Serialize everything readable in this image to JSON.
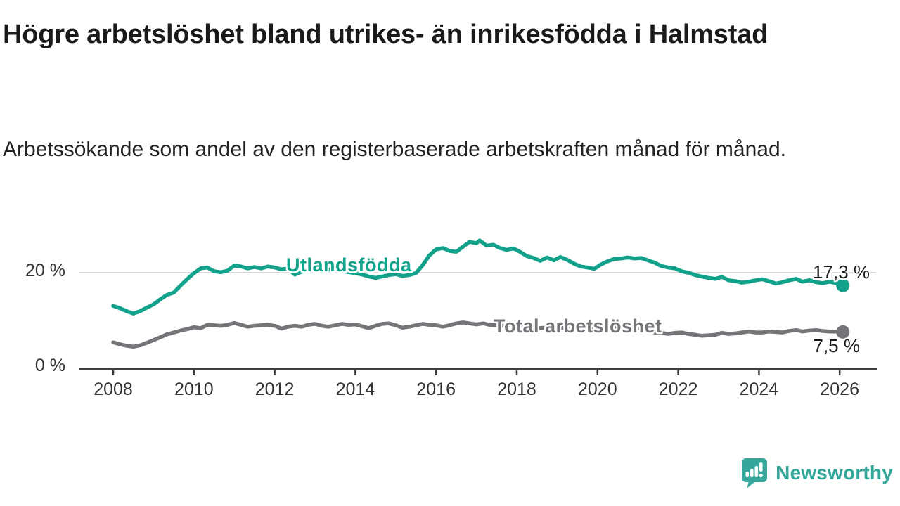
{
  "header": {
    "title": "Högre arbetslöshet bland utrikes- än inrikesfödda i Halmstad",
    "subtitle": "Arbetssökande som andel av den registerbaserade arbetskraften månad för månad."
  },
  "chart_data": {
    "type": "line",
    "title": "Högre arbetslöshet bland utrikes- än inrikesfödda i Halmstad",
    "subtitle": "Arbetssökande som andel av den registerbaserade arbetskraften månad för månad.",
    "xlabel": "",
    "ylabel": "",
    "xlim": [
      2008,
      2026.3
    ],
    "ylim": [
      0,
      29
    ],
    "grid": "single horizontal gridline at 20 %",
    "grid_color": "#d8d8d8",
    "axis_color": "#3d3d3d",
    "tick_label_color": "#333333",
    "legend_position": "inline-labels-on-lines",
    "x_ticks": [
      2008,
      2010,
      2012,
      2014,
      2016,
      2018,
      2020,
      2022,
      2024,
      2026
    ],
    "y_ticks": [
      {
        "value": 20,
        "label": "20 %"
      },
      {
        "value": 0,
        "label": "0 %"
      }
    ],
    "series": [
      {
        "name": "Utlandsfödda",
        "color": "#12a28b",
        "end_label": "17,3 %",
        "end_value": 17.3,
        "points": [
          [
            2008.0,
            13.0
          ],
          [
            2008.17,
            12.5
          ],
          [
            2008.33,
            11.9
          ],
          [
            2008.5,
            11.4
          ],
          [
            2008.67,
            11.9
          ],
          [
            2008.83,
            12.6
          ],
          [
            2009.0,
            13.3
          ],
          [
            2009.17,
            14.4
          ],
          [
            2009.33,
            15.3
          ],
          [
            2009.5,
            15.8
          ],
          [
            2009.67,
            17.3
          ],
          [
            2009.83,
            18.6
          ],
          [
            2010.0,
            19.9
          ],
          [
            2010.17,
            20.9
          ],
          [
            2010.33,
            21.1
          ],
          [
            2010.5,
            20.3
          ],
          [
            2010.67,
            20.1
          ],
          [
            2010.83,
            20.4
          ],
          [
            2011.0,
            21.5
          ],
          [
            2011.17,
            21.3
          ],
          [
            2011.33,
            20.9
          ],
          [
            2011.5,
            21.2
          ],
          [
            2011.67,
            20.9
          ],
          [
            2011.83,
            21.3
          ],
          [
            2012.0,
            21.1
          ],
          [
            2012.17,
            20.7
          ],
          [
            2012.33,
            20.9
          ],
          [
            2012.5,
            19.6
          ],
          [
            2012.67,
            20.2
          ],
          [
            2012.83,
            20.6
          ],
          [
            2013.0,
            20.7
          ],
          [
            2013.17,
            20.3
          ],
          [
            2013.33,
            20.6
          ],
          [
            2013.5,
            20.8
          ],
          [
            2013.67,
            20.4
          ],
          [
            2013.83,
            20.1
          ],
          [
            2014.0,
            19.9
          ],
          [
            2014.17,
            19.6
          ],
          [
            2014.33,
            19.2
          ],
          [
            2014.5,
            18.9
          ],
          [
            2014.67,
            19.2
          ],
          [
            2014.83,
            19.5
          ],
          [
            2015.0,
            19.7
          ],
          [
            2015.17,
            19.3
          ],
          [
            2015.33,
            19.5
          ],
          [
            2015.5,
            19.9
          ],
          [
            2015.67,
            21.6
          ],
          [
            2015.83,
            23.6
          ],
          [
            2016.0,
            24.9
          ],
          [
            2016.17,
            25.2
          ],
          [
            2016.33,
            24.6
          ],
          [
            2016.5,
            24.4
          ],
          [
            2016.67,
            25.5
          ],
          [
            2016.83,
            26.5
          ],
          [
            2017.0,
            26.2
          ],
          [
            2017.08,
            26.8
          ],
          [
            2017.25,
            25.7
          ],
          [
            2017.42,
            25.9
          ],
          [
            2017.58,
            25.2
          ],
          [
            2017.75,
            24.8
          ],
          [
            2017.92,
            25.1
          ],
          [
            2018.08,
            24.4
          ],
          [
            2018.25,
            23.5
          ],
          [
            2018.42,
            23.1
          ],
          [
            2018.58,
            22.5
          ],
          [
            2018.75,
            23.2
          ],
          [
            2018.92,
            22.6
          ],
          [
            2019.08,
            23.3
          ],
          [
            2019.25,
            22.7
          ],
          [
            2019.42,
            21.9
          ],
          [
            2019.58,
            21.3
          ],
          [
            2019.75,
            21.1
          ],
          [
            2019.92,
            20.8
          ],
          [
            2020.08,
            21.7
          ],
          [
            2020.25,
            22.4
          ],
          [
            2020.42,
            22.9
          ],
          [
            2020.58,
            23.0
          ],
          [
            2020.75,
            23.2
          ],
          [
            2020.92,
            23.0
          ],
          [
            2021.08,
            23.1
          ],
          [
            2021.25,
            22.6
          ],
          [
            2021.42,
            22.1
          ],
          [
            2021.58,
            21.4
          ],
          [
            2021.75,
            21.1
          ],
          [
            2021.92,
            20.9
          ],
          [
            2022.08,
            20.3
          ],
          [
            2022.25,
            20.0
          ],
          [
            2022.42,
            19.5
          ],
          [
            2022.58,
            19.2
          ],
          [
            2022.75,
            18.9
          ],
          [
            2022.92,
            18.7
          ],
          [
            2023.08,
            19.1
          ],
          [
            2023.25,
            18.4
          ],
          [
            2023.42,
            18.2
          ],
          [
            2023.58,
            17.9
          ],
          [
            2023.75,
            18.1
          ],
          [
            2023.92,
            18.4
          ],
          [
            2024.08,
            18.6
          ],
          [
            2024.25,
            18.2
          ],
          [
            2024.42,
            17.7
          ],
          [
            2024.58,
            18.0
          ],
          [
            2024.75,
            18.4
          ],
          [
            2024.92,
            18.7
          ],
          [
            2025.08,
            18.1
          ],
          [
            2025.25,
            18.4
          ],
          [
            2025.42,
            18.0
          ],
          [
            2025.58,
            17.8
          ],
          [
            2025.75,
            18.1
          ],
          [
            2025.92,
            17.8
          ],
          [
            2026.08,
            17.3
          ]
        ]
      },
      {
        "name": "Total arbetslöshet",
        "color": "#747579",
        "end_label": "7,5 %",
        "end_value": 7.5,
        "points": [
          [
            2008.0,
            5.3
          ],
          [
            2008.17,
            4.9
          ],
          [
            2008.33,
            4.6
          ],
          [
            2008.5,
            4.4
          ],
          [
            2008.67,
            4.7
          ],
          [
            2008.83,
            5.2
          ],
          [
            2009.0,
            5.8
          ],
          [
            2009.17,
            6.4
          ],
          [
            2009.33,
            7.0
          ],
          [
            2009.5,
            7.4
          ],
          [
            2009.67,
            7.8
          ],
          [
            2009.83,
            8.1
          ],
          [
            2010.0,
            8.5
          ],
          [
            2010.17,
            8.3
          ],
          [
            2010.33,
            9.0
          ],
          [
            2010.5,
            8.9
          ],
          [
            2010.67,
            8.8
          ],
          [
            2010.83,
            9.0
          ],
          [
            2011.0,
            9.4
          ],
          [
            2011.17,
            9.0
          ],
          [
            2011.33,
            8.6
          ],
          [
            2011.5,
            8.8
          ],
          [
            2011.67,
            8.9
          ],
          [
            2011.83,
            9.0
          ],
          [
            2012.0,
            8.8
          ],
          [
            2012.17,
            8.2
          ],
          [
            2012.33,
            8.6
          ],
          [
            2012.5,
            8.8
          ],
          [
            2012.67,
            8.6
          ],
          [
            2012.83,
            9.0
          ],
          [
            2013.0,
            9.2
          ],
          [
            2013.17,
            8.8
          ],
          [
            2013.33,
            8.6
          ],
          [
            2013.5,
            8.9
          ],
          [
            2013.67,
            9.2
          ],
          [
            2013.83,
            9.0
          ],
          [
            2014.0,
            9.1
          ],
          [
            2014.17,
            8.7
          ],
          [
            2014.33,
            8.3
          ],
          [
            2014.5,
            8.8
          ],
          [
            2014.67,
            9.2
          ],
          [
            2014.83,
            9.3
          ],
          [
            2015.0,
            8.9
          ],
          [
            2015.17,
            8.4
          ],
          [
            2015.33,
            8.6
          ],
          [
            2015.5,
            8.9
          ],
          [
            2015.67,
            9.2
          ],
          [
            2015.83,
            9.0
          ],
          [
            2016.0,
            8.9
          ],
          [
            2016.17,
            8.6
          ],
          [
            2016.33,
            8.9
          ],
          [
            2016.5,
            9.3
          ],
          [
            2016.67,
            9.5
          ],
          [
            2016.83,
            9.3
          ],
          [
            2017.0,
            9.1
          ],
          [
            2017.17,
            9.3
          ],
          [
            2017.33,
            9.0
          ],
          [
            2017.5,
            8.9
          ],
          [
            2017.67,
            8.8
          ],
          [
            2017.83,
            8.9
          ],
          [
            2018.0,
            8.7
          ],
          [
            2018.25,
            8.5
          ],
          [
            2018.5,
            8.3
          ],
          [
            2018.75,
            8.4
          ],
          [
            2019.0,
            8.5
          ],
          [
            2019.25,
            8.3
          ],
          [
            2019.5,
            8.1
          ],
          [
            2019.75,
            8.0
          ],
          [
            2020.0,
            8.0
          ],
          [
            2020.25,
            8.4
          ],
          [
            2020.5,
            8.6
          ],
          [
            2020.75,
            8.5
          ],
          [
            2021.0,
            8.3
          ],
          [
            2021.25,
            7.9
          ],
          [
            2021.42,
            7.4
          ],
          [
            2021.58,
            7.3
          ],
          [
            2021.75,
            7.1
          ],
          [
            2021.92,
            7.3
          ],
          [
            2022.08,
            7.4
          ],
          [
            2022.25,
            7.1
          ],
          [
            2022.42,
            6.9
          ],
          [
            2022.58,
            6.7
          ],
          [
            2022.75,
            6.8
          ],
          [
            2022.92,
            6.9
          ],
          [
            2023.08,
            7.3
          ],
          [
            2023.25,
            7.1
          ],
          [
            2023.42,
            7.2
          ],
          [
            2023.58,
            7.4
          ],
          [
            2023.75,
            7.6
          ],
          [
            2023.92,
            7.4
          ],
          [
            2024.08,
            7.4
          ],
          [
            2024.25,
            7.6
          ],
          [
            2024.42,
            7.5
          ],
          [
            2024.58,
            7.4
          ],
          [
            2024.75,
            7.7
          ],
          [
            2024.92,
            7.9
          ],
          [
            2025.08,
            7.6
          ],
          [
            2025.25,
            7.8
          ],
          [
            2025.42,
            7.9
          ],
          [
            2025.58,
            7.7
          ],
          [
            2025.75,
            7.6
          ],
          [
            2025.92,
            7.6
          ],
          [
            2026.08,
            7.5
          ]
        ]
      }
    ]
  },
  "branding": {
    "logo_text": "Newsworthy",
    "logo_color": "#35a79a",
    "logo_icon": "newsworthy-bar-chart-speech-bubble-icon"
  }
}
